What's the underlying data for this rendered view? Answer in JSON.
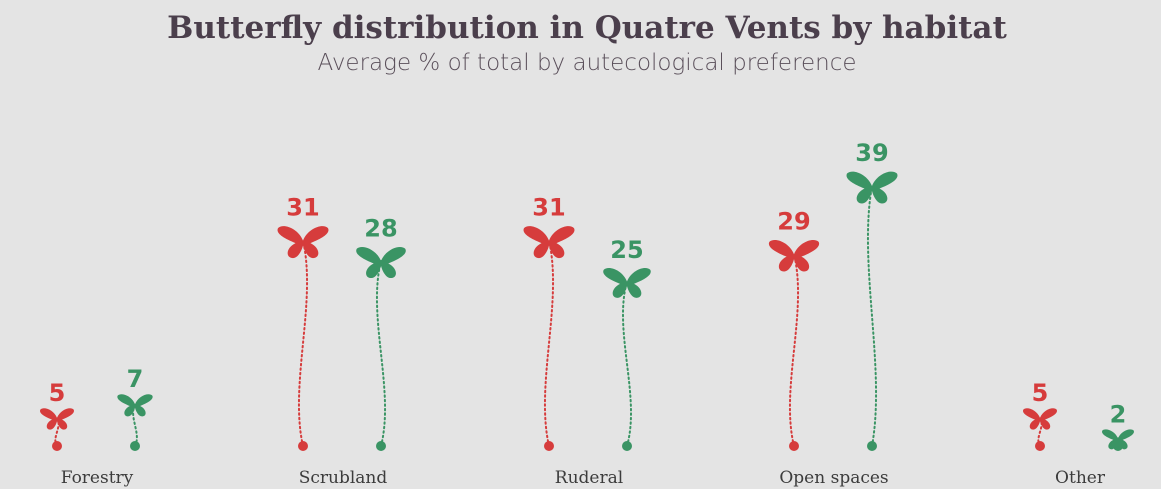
{
  "chart_data": {
    "type": "pictorial",
    "title": "Butterfly distribution in Quatre Vents by habitat",
    "subtitle": "Average % of total by autecological preference",
    "categories": [
      "Forestry",
      "Scrubland",
      "Ruderal",
      "Open spaces",
      "Other"
    ],
    "series": [
      {
        "color": "#d63c3c",
        "values": [
          5,
          31,
          31,
          29,
          5
        ]
      },
      {
        "color": "#3a9464",
        "values": [
          7,
          28,
          25,
          39,
          2
        ]
      }
    ]
  }
}
